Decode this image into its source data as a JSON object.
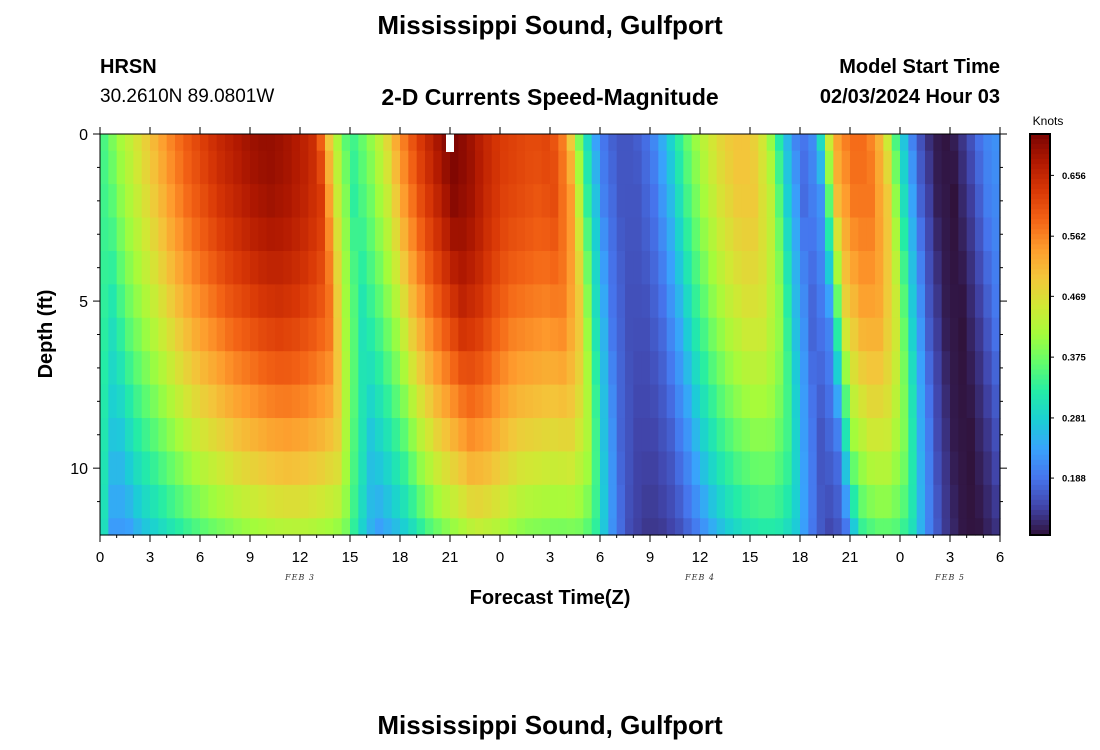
{
  "header": {
    "title": "Mississippi Sound, Gulfport",
    "station_id": "HRSN",
    "coordinates": "30.2610N  89.0801W",
    "subtitle": "2-D Currents Speed-Magnitude",
    "model_label": "Model Start Time",
    "model_time": "02/03/2024 Hour 03"
  },
  "footer": {
    "title": "Mississippi Sound, Gulfport"
  },
  "chart_data": {
    "type": "heatmap",
    "title": "2-D Currents Speed-Magnitude",
    "xlabel": "Forecast Time(Z)",
    "ylabel": "Depth (ft)",
    "x_start_hour": 0,
    "x_end_hour": 54,
    "x_ticks": [
      "0",
      "3",
      "6",
      "9",
      "12",
      "15",
      "18",
      "21",
      "0",
      "3",
      "6",
      "9",
      "12",
      "15",
      "18",
      "21",
      "0",
      "3",
      "6"
    ],
    "date_labels": [
      {
        "label": "FEB 3",
        "hour": 12
      },
      {
        "label": "FEB 4",
        "hour": 36
      },
      {
        "label": "FEB 5",
        "hour": 51
      }
    ],
    "y_ticks": [
      "0",
      "5",
      "10"
    ],
    "ylim": [
      0,
      12
    ],
    "y_inverted": true,
    "colorbar": {
      "unit": "Knots",
      "min": 0.1,
      "max": 0.72,
      "ticks": [
        "0.656",
        "0.562",
        "0.469",
        "0.375",
        "0.281",
        "0.188"
      ],
      "colors": [
        "#30123b",
        "#4145ab",
        "#4675ed",
        "#39a2fc",
        "#1bcfd4",
        "#24eca6",
        "#61fc6c",
        "#a4fc3b",
        "#d1e834",
        "#f3c63a",
        "#fe9b2d",
        "#f36315",
        "#d93806",
        "#b11901",
        "#7a0402"
      ]
    },
    "depth_levels_ft": [
      0,
      1,
      2,
      3,
      4,
      5,
      6,
      7,
      8,
      9,
      10,
      11,
      12
    ],
    "surface_speed_knots": [
      [
        0,
        0.33
      ],
      [
        1,
        0.4
      ],
      [
        2,
        0.45
      ],
      [
        3,
        0.5
      ],
      [
        4,
        0.55
      ],
      [
        5,
        0.59
      ],
      [
        6,
        0.62
      ],
      [
        7,
        0.65
      ],
      [
        8,
        0.67
      ],
      [
        9,
        0.69
      ],
      [
        10,
        0.7
      ],
      [
        11,
        0.69
      ],
      [
        12,
        0.67
      ],
      [
        13,
        0.64
      ],
      [
        14,
        0.45
      ],
      [
        15,
        0.33
      ],
      [
        16,
        0.38
      ],
      [
        17,
        0.45
      ],
      [
        18,
        0.55
      ],
      [
        19,
        0.62
      ],
      [
        20,
        0.67
      ],
      [
        21,
        0.72
      ],
      [
        22,
        0.7
      ],
      [
        23,
        0.66
      ],
      [
        24,
        0.63
      ],
      [
        25,
        0.62
      ],
      [
        26,
        0.61
      ],
      [
        27,
        0.62
      ],
      [
        28,
        0.55
      ],
      [
        29,
        0.33
      ],
      [
        30,
        0.2
      ],
      [
        31,
        0.16
      ],
      [
        32,
        0.16
      ],
      [
        33,
        0.19
      ],
      [
        34,
        0.26
      ],
      [
        35,
        0.35
      ],
      [
        36,
        0.42
      ],
      [
        37,
        0.47
      ],
      [
        38,
        0.5
      ],
      [
        39,
        0.5
      ],
      [
        40,
        0.44
      ],
      [
        41,
        0.28
      ],
      [
        42,
        0.18
      ],
      [
        43,
        0.22
      ],
      [
        44,
        0.52
      ],
      [
        45,
        0.58
      ],
      [
        46,
        0.58
      ],
      [
        47,
        0.5
      ],
      [
        48,
        0.3
      ],
      [
        49,
        0.17
      ],
      [
        50,
        0.11
      ],
      [
        51,
        0.1
      ],
      [
        52,
        0.14
      ],
      [
        53,
        0.2
      ],
      [
        54,
        0.22
      ]
    ]
  }
}
